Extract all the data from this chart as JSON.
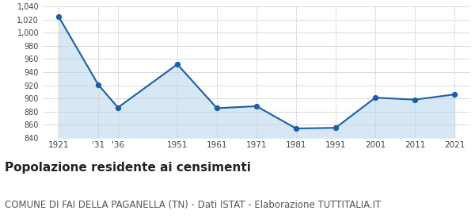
{
  "years": [
    1921,
    1931,
    1936,
    1951,
    1961,
    1971,
    1981,
    1991,
    2001,
    2011,
    2021
  ],
  "x_labels": [
    "1921",
    "'31",
    "'36",
    "1951",
    "1961",
    "1971",
    "1981",
    "1991",
    "2001",
    "2011",
    "2021"
  ],
  "values": [
    1025,
    921,
    886,
    952,
    885,
    888,
    854,
    855,
    901,
    898,
    906
  ],
  "ylim": [
    840,
    1040
  ],
  "yticks": [
    840,
    860,
    880,
    900,
    920,
    940,
    960,
    980,
    1000,
    1020,
    1040
  ],
  "line_color": "#1a5fa8",
  "fill_color": "#d6e8f5",
  "marker_color": "#1a5fa8",
  "grid_color": "#cccccc",
  "background_color": "#ffffff",
  "title": "Popolazione residente ai censimenti",
  "subtitle": "COMUNE DI FAI DELLA PAGANELLA (TN) - Dati ISTAT - Elaborazione TUTTITALIA.IT",
  "title_fontsize": 11,
  "subtitle_fontsize": 8.5,
  "title_color": "#222222",
  "subtitle_color": "#555555"
}
